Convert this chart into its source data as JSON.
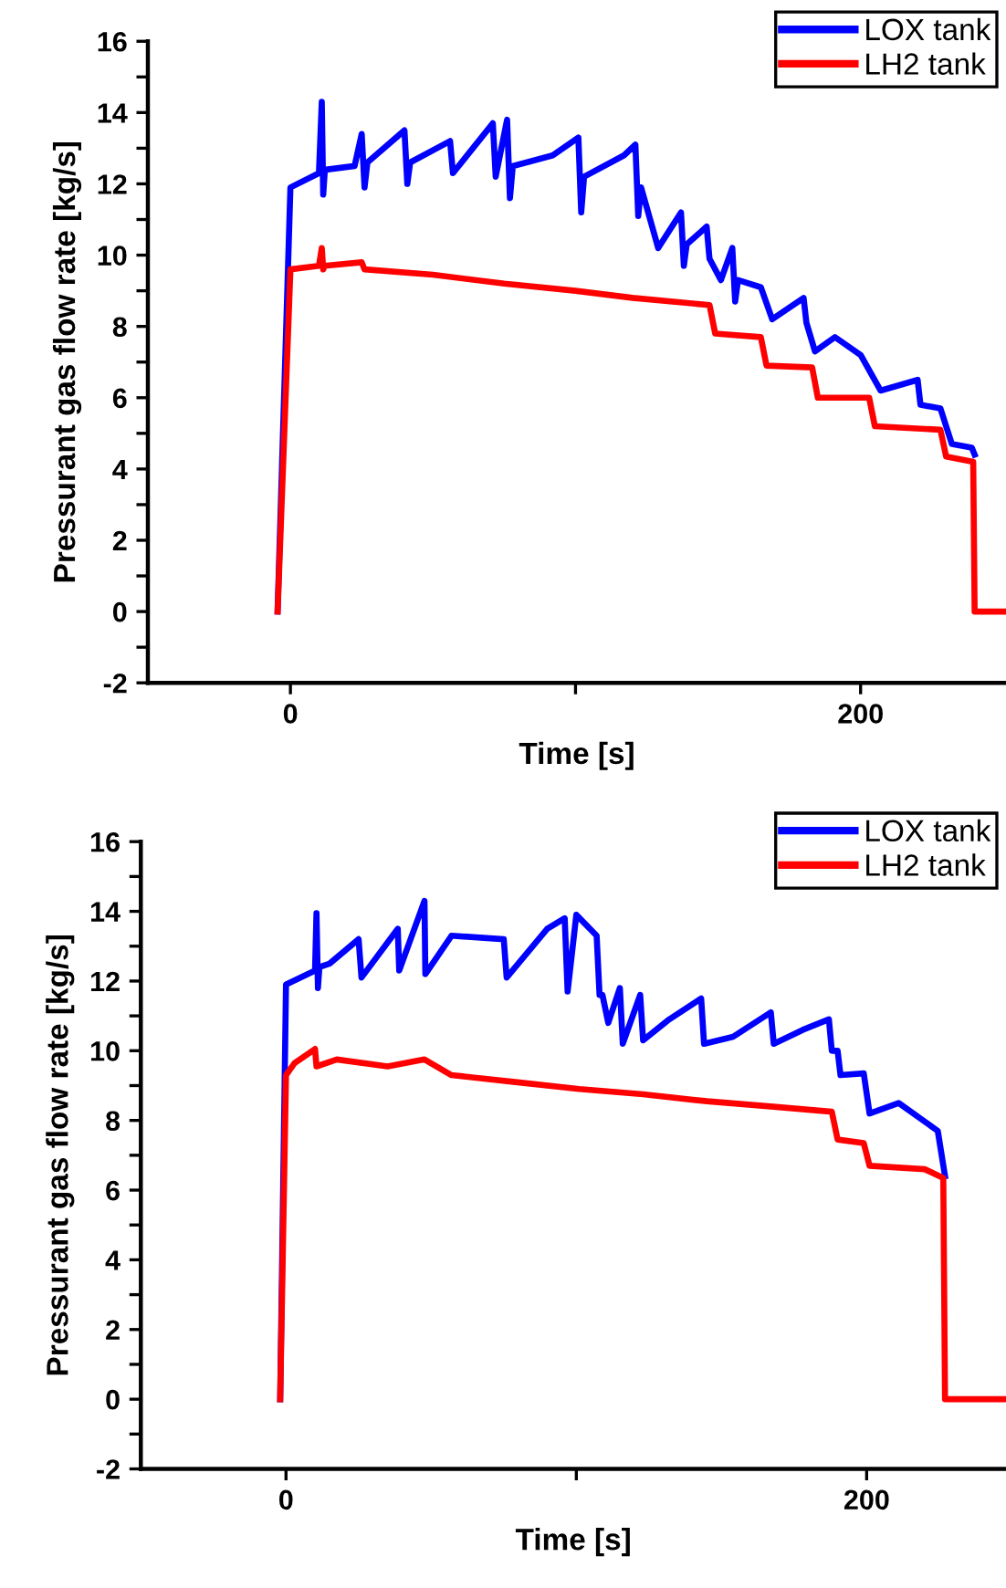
{
  "chart_data": [
    {
      "type": "line",
      "xlabel": "Time [s]",
      "ylabel": "Pressurant gas flow rate [kg/s]",
      "xlim": [
        -50,
        251
      ],
      "ylim": [
        -2,
        16
      ],
      "xticks": [
        0,
        {
          "value": 100,
          "label": null
        },
        200
      ],
      "yticks": [
        -2,
        {
          "value": -1,
          "label": null
        },
        0,
        {
          "value": 1,
          "label": null
        },
        2,
        {
          "value": 3,
          "label": null
        },
        4,
        {
          "value": 5,
          "label": null
        },
        6,
        {
          "value": 7,
          "label": null
        },
        8,
        {
          "value": 9,
          "label": null
        },
        10,
        {
          "value": 11,
          "label": null
        },
        12,
        {
          "value": 13,
          "label": null
        },
        14,
        {
          "value": 15,
          "label": null
        },
        16
      ],
      "grid": false,
      "legend": "top right",
      "line_style": "solid",
      "marker": "none",
      "series": [
        {
          "name": "LOX tank",
          "color": "#0000ff",
          "x": [
            -4.5,
            0,
            10,
            11,
            11.5,
            12,
            12.5,
            22.5,
            25,
            26,
            27,
            40,
            41,
            42,
            56,
            57,
            71,
            72,
            76,
            77,
            78,
            92,
            101,
            102,
            103,
            117,
            121,
            122,
            123,
            129,
            137,
            138,
            139,
            146,
            147,
            151,
            155,
            156,
            157,
            165,
            169,
            180,
            181,
            184,
            191,
            200,
            207,
            220,
            221,
            228,
            232,
            239,
            240
          ],
          "values": [
            0,
            11.9,
            12.3,
            14.3,
            11.7,
            12.3,
            12.4,
            12.5,
            13.4,
            11.9,
            12.6,
            13.5,
            12.0,
            12.6,
            13.2,
            12.3,
            13.7,
            12.2,
            13.8,
            11.6,
            12.5,
            12.8,
            13.3,
            11.2,
            12.2,
            12.8,
            13.1,
            11.1,
            11.9,
            10.2,
            11.2,
            9.7,
            10.3,
            10.8,
            9.9,
            9.3,
            10.2,
            8.7,
            9.3,
            9.1,
            8.2,
            8.8,
            8.1,
            7.3,
            7.7,
            7.2,
            6.2,
            6.5,
            5.8,
            5.7,
            4.7,
            4.6,
            4.4
          ]
        },
        {
          "name": "LH2 tank",
          "color": "#ff0000",
          "x": [
            -4.5,
            0,
            10,
            11,
            11.5,
            12,
            25,
            26,
            50,
            75,
            100,
            120,
            147,
            149,
            165,
            167,
            183,
            185,
            203,
            205,
            228,
            230,
            239.5,
            240,
            251
          ],
          "values": [
            0,
            9.6,
            9.7,
            10.2,
            9.6,
            9.7,
            9.8,
            9.6,
            9.45,
            9.2,
            9.0,
            8.8,
            8.6,
            7.8,
            7.7,
            6.9,
            6.85,
            6.0,
            6.0,
            5.2,
            5.1,
            4.35,
            4.2,
            0,
            0
          ]
        }
      ]
    },
    {
      "type": "line",
      "xlabel": "Time [s]",
      "ylabel": "Pressurant gas flow rate [kg/s]",
      "xlim": [
        -50,
        248
      ],
      "ylim": [
        -2,
        16
      ],
      "xticks": [
        0,
        {
          "value": 100,
          "label": null
        },
        200
      ],
      "yticks": [
        -2,
        {
          "value": -1,
          "label": null
        },
        0,
        {
          "value": 1,
          "label": null
        },
        2,
        {
          "value": 3,
          "label": null
        },
        4,
        {
          "value": 5,
          "label": null
        },
        6,
        {
          "value": 7,
          "label": null
        },
        8,
        {
          "value": 9,
          "label": null
        },
        10,
        {
          "value": 11,
          "label": null
        },
        12,
        {
          "value": 13,
          "label": null
        },
        14,
        {
          "value": 15,
          "label": null
        },
        16
      ],
      "grid": false,
      "legend": "top right",
      "line_style": "solid",
      "marker": "none",
      "series": [
        {
          "name": "LOX tank",
          "color": "#0000ff",
          "x": [
            -2,
            0,
            10,
            10.5,
            11,
            11.5,
            15,
            25,
            26,
            38.5,
            39,
            47.7,
            48,
            57,
            75,
            76,
            90,
            96,
            97,
            100,
            107,
            108,
            109,
            111,
            115,
            116,
            122,
            123,
            132,
            143,
            144,
            154,
            167,
            168,
            178,
            187,
            188,
            190,
            191,
            199,
            201,
            211,
            224.5,
            227
          ],
          "values": [
            0,
            11.9,
            12.3,
            13.95,
            11.8,
            12.4,
            12.5,
            13.2,
            12.1,
            13.5,
            12.3,
            14.3,
            12.2,
            13.3,
            13.2,
            12.1,
            13.5,
            13.8,
            11.7,
            13.9,
            13.3,
            11.6,
            11.6,
            10.8,
            11.8,
            10.2,
            11.6,
            10.3,
            10.9,
            11.5,
            10.2,
            10.4,
            11.1,
            10.2,
            10.6,
            10.9,
            10.0,
            10.0,
            9.3,
            9.35,
            8.2,
            8.5,
            7.7,
            6.4
          ]
        },
        {
          "name": "LH2 tank",
          "color": "#ff0000",
          "x": [
            -2,
            0,
            3,
            10,
            10.5,
            17.5,
            35,
            47.7,
            57,
            79,
            101,
            123,
            145,
            167,
            188,
            190,
            199,
            201,
            220,
            226.4,
            227,
            248
          ],
          "values": [
            0,
            9.3,
            9.65,
            10.05,
            9.55,
            9.75,
            9.55,
            9.75,
            9.3,
            9.1,
            8.9,
            8.75,
            8.55,
            8.4,
            8.25,
            7.45,
            7.35,
            6.7,
            6.6,
            6.35,
            0,
            0
          ]
        }
      ]
    }
  ]
}
